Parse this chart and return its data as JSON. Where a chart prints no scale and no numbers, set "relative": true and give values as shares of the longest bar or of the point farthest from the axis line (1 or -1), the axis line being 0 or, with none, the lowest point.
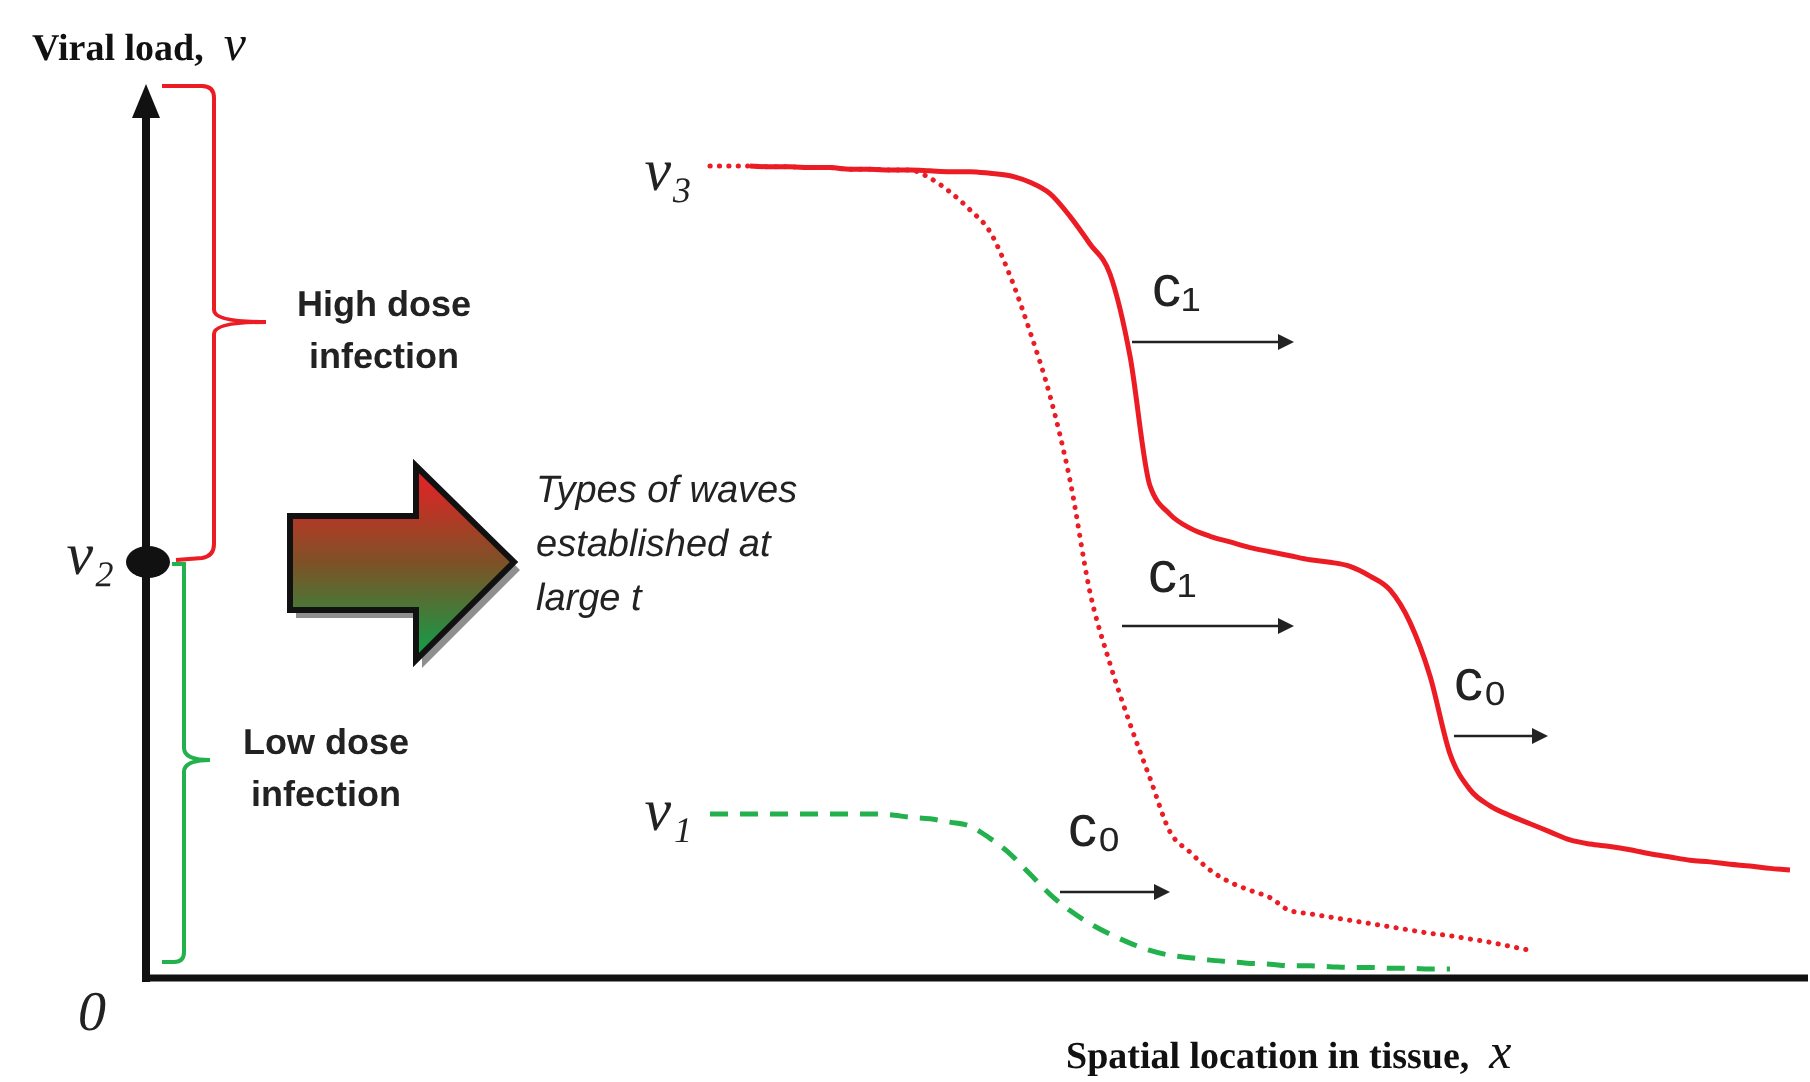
{
  "chart_data": {
    "type": "line",
    "xlabel": "Spatial location in tissue, x",
    "relative": true,
    "categories": [
      null,
      null,
      null,
      null,
      null,
      null,
      null,
      null,
      null,
      null,
      null,
      null,
      null,
      null,
      null,
      null,
      null,
      null,
      null,
      null,
      null,
      null,
      null,
      null,
      null,
      null,
      null,
      null,
      null,
      null,
      null,
      null,
      null,
      null,
      null,
      null,
      null,
      null,
      null,
      null,
      null,
      null,
      null,
      null,
      null,
      null,
      null,
      null,
      null,
      null,
      null,
      null,
      null,
      null,
      null
    ],
    "series": [
      {
        "color": "#ec1c24",
        "line_style": "solid",
        "values": [
          null,
          null,
          1,
          0.999,
          0.999,
          0.998,
          0.998,
          0.996,
          0.996,
          0.995,
          0.995,
          0.994,
          0.993,
          0.993,
          0.991,
          0.988,
          0.98,
          0.966,
          0.938,
          0.904,
          0.867,
          0.766,
          0.606,
          0.571,
          0.554,
          0.544,
          0.537,
          0.53,
          0.525,
          0.52,
          0.515,
          0.512,
          0.507,
          0.495,
          0.478,
          0.438,
          0.372,
          0.276,
          0.232,
          0.212,
          0.2,
          0.19,
          0.18,
          0.17,
          0.165,
          0.162,
          0.158,
          0.153,
          0.149,
          0.145,
          0.143,
          0.14,
          0.138,
          0.135,
          0.133
        ]
      },
      {
        "color": "#ec1c24",
        "line_style": "dotted",
        "values": [
          1,
          1,
          1,
          0.999,
          0.999,
          0.998,
          0.998,
          0.996,
          0.996,
          0.995,
          0.995,
          0.985,
          0.968,
          0.946,
          0.919,
          0.865,
          0.796,
          0.717,
          0.613,
          0.475,
          0.387,
          0.313,
          0.246,
          0.18,
          0.155,
          0.133,
          0.118,
          0.108,
          0.099,
          0.083,
          0.079,
          0.075,
          0.071,
          0.067,
          0.063,
          0.059,
          0.055,
          0.052,
          0.048,
          0.044,
          0.039,
          0.034,
          null,
          null,
          null,
          null,
          null,
          null,
          null,
          null,
          null,
          null,
          null,
          null,
          null
        ]
      },
      {
        "color": "#22b14c",
        "line_style": "dashed",
        "values": [
          0.202,
          0.202,
          0.202,
          0.202,
          0.202,
          0.202,
          0.202,
          0.202,
          0.202,
          0.201,
          0.198,
          0.196,
          0.192,
          0.187,
          0.172,
          0.153,
          0.128,
          0.103,
          0.083,
          0.067,
          0.054,
          0.043,
          0.034,
          0.028,
          0.025,
          0.022,
          0.02,
          0.018,
          0.017,
          0.015,
          0.015,
          0.014,
          0.013,
          0.013,
          0.012,
          0.012,
          0.011,
          0.011,
          null,
          null,
          null,
          null,
          null,
          null,
          null,
          null,
          null,
          null,
          null,
          null,
          null,
          null,
          null,
          null,
          null
        ]
      }
    ],
    "annotations": [
      "Viral load, v",
      "0",
      "v₂",
      "v₃",
      "v₁",
      "High dose infection",
      "Low dose infection",
      "Types of waves established at large t",
      "c₁",
      "c₁",
      "c₀",
      "c₀"
    ]
  }
}
